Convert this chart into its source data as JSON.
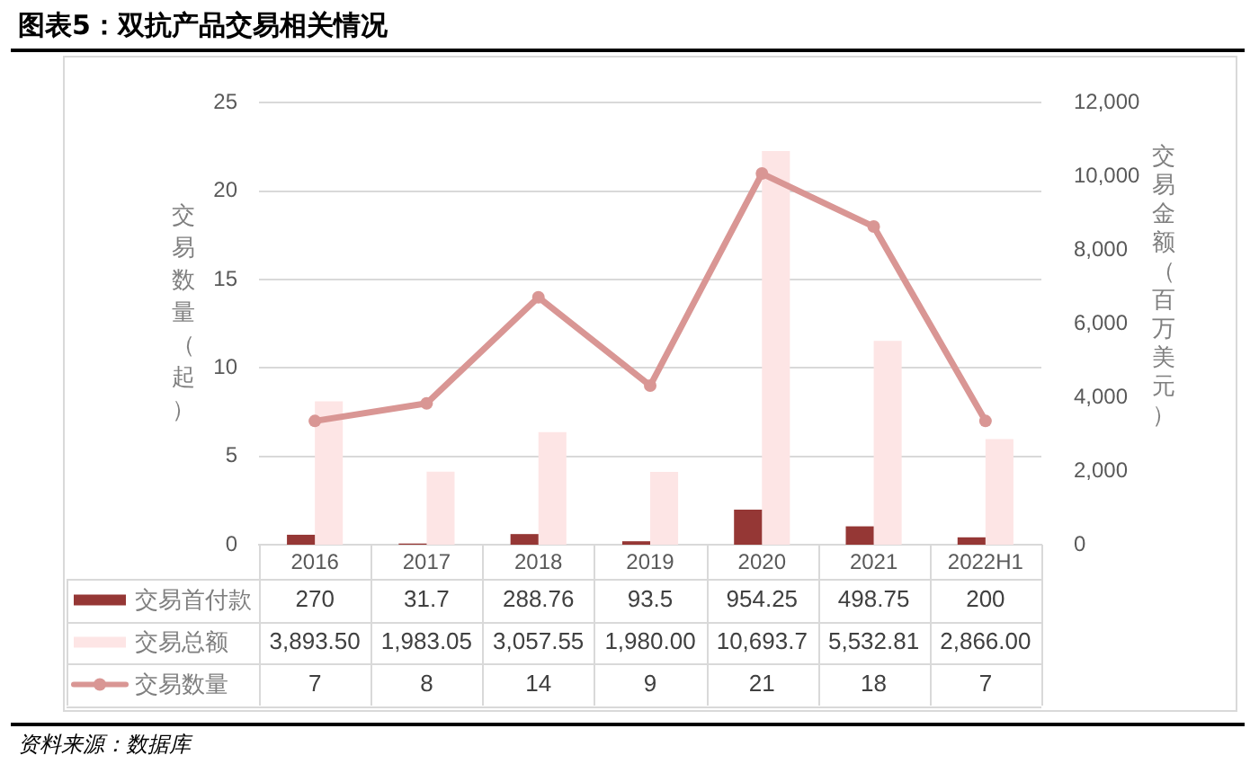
{
  "chart_data": {
    "type": "bar",
    "title": "图表5：双抗产品交易相关情况",
    "ylabel": "交易数量（起）",
    "y2label": "交易金额（百万美元）",
    "categories": [
      "2016",
      "2017",
      "2018",
      "2019",
      "2020",
      "2021",
      "2022H1"
    ],
    "series": [
      {
        "name": "交易首付款",
        "axis": "y2",
        "color": "#953735",
        "values": [
          270,
          31.7,
          288.76,
          93.5,
          954.25,
          498.75,
          200
        ],
        "value_labels": [
          "270",
          "31.7",
          "288.76",
          "93.5",
          "954.25",
          "498.75",
          "200"
        ]
      },
      {
        "name": "交易总额",
        "axis": "y2",
        "color": "#fde5e5",
        "values": [
          3893.5,
          1983.05,
          3057.55,
          1980,
          10693.7,
          5532.81,
          2866
        ],
        "value_labels": [
          "3,893.50",
          "1,983.05",
          "3,057.55",
          "1,980.00",
          "10,693.7",
          "5,532.81",
          "2,866.00"
        ]
      },
      {
        "name": "交易数量",
        "type": "line",
        "color": "#d99694",
        "values": [
          7,
          8,
          14,
          9,
          21,
          18,
          7
        ],
        "value_labels": [
          "7",
          "8",
          "14",
          "9",
          "21",
          "18",
          "7"
        ]
      }
    ],
    "ylim": [
      0,
      25
    ],
    "yticks": [
      0,
      5,
      10,
      15,
      20,
      25
    ],
    "y2lim": [
      0,
      12000
    ],
    "y2ticks": [
      0,
      {
        "value": 2000,
        "label": "2,000"
      },
      {
        "value": 4000,
        "label": "4,000"
      },
      {
        "value": 6000,
        "label": "6,000"
      },
      {
        "value": 8000,
        "label": "8,000"
      },
      {
        "value": 10000,
        "label": "10,000"
      },
      {
        "value": 12000,
        "label": "12,000"
      }
    ],
    "grid": "y",
    "legend": "bottom left",
    "marker": "circle",
    "annotations": [
      "资料来源：数据库"
    ]
  }
}
